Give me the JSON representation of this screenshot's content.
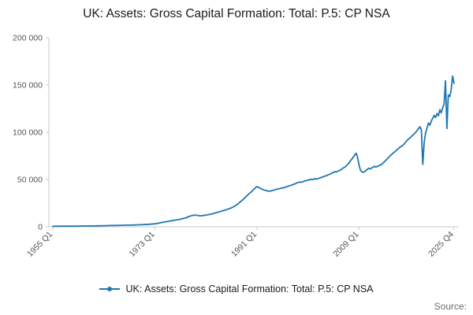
{
  "footer": {
    "source_label": "Source:"
  },
  "chart_data": {
    "type": "line",
    "title": "UK: Assets: Gross Capital Formation: Total: P.5: CP NSA",
    "xlabel": "",
    "ylabel": "",
    "xlim": [
      1954.3,
      2026.6
    ],
    "ylim": [
      0,
      200000
    ],
    "grid": false,
    "legend_position": "bottom",
    "y_ticks": [
      0,
      50000,
      100000,
      150000,
      200000
    ],
    "y_tick_labels": [
      "0",
      "50 000",
      "100 000",
      "150 000",
      "200 000"
    ],
    "x_ticks": [
      1955.0,
      1973.0,
      1991.0,
      2009.0,
      2025.75
    ],
    "x_tick_labels": [
      "1955 Q1",
      "1973 Q1",
      "1991 Q1",
      "2009 Q1",
      "2025 Q4"
    ],
    "axis_color": "#c9c9c9",
    "series": [
      {
        "name": "UK: Assets: Gross Capital Formation: Total: P.5: CP NSA",
        "color": "#1f77b4",
        "points": [
          [
            1955,
            550
          ],
          [
            1956,
            600
          ],
          [
            1957,
            640
          ],
          [
            1958,
            660
          ],
          [
            1959,
            720
          ],
          [
            1960,
            820
          ],
          [
            1961,
            900
          ],
          [
            1962,
            950
          ],
          [
            1963,
            1000
          ],
          [
            1964,
            1200
          ],
          [
            1965,
            1300
          ],
          [
            1966,
            1400
          ],
          [
            1967,
            1550
          ],
          [
            1968,
            1750
          ],
          [
            1969,
            1850
          ],
          [
            1970,
            2100
          ],
          [
            1971,
            2350
          ],
          [
            1972,
            2700
          ],
          [
            1973,
            3200
          ],
          [
            1973.5,
            3700
          ],
          [
            1974,
            4300
          ],
          [
            1974.5,
            4800
          ],
          [
            1975,
            5400
          ],
          [
            1975.5,
            5900
          ],
          [
            1976,
            6500
          ],
          [
            1976.5,
            7000
          ],
          [
            1977,
            7500
          ],
          [
            1977.5,
            8000
          ],
          [
            1978,
            8800
          ],
          [
            1978.5,
            9600
          ],
          [
            1979,
            10800
          ],
          [
            1979.5,
            11800
          ],
          [
            1980,
            12400
          ],
          [
            1980.5,
            12100
          ],
          [
            1981,
            11600
          ],
          [
            1981.5,
            11900
          ],
          [
            1982,
            12400
          ],
          [
            1982.5,
            12900
          ],
          [
            1983,
            13600
          ],
          [
            1983.5,
            14400
          ],
          [
            1984,
            15300
          ],
          [
            1984.5,
            16100
          ],
          [
            1985,
            17100
          ],
          [
            1985.5,
            17900
          ],
          [
            1986,
            18900
          ],
          [
            1986.5,
            20100
          ],
          [
            1987,
            21600
          ],
          [
            1987.5,
            23600
          ],
          [
            1988,
            26100
          ],
          [
            1988.5,
            28600
          ],
          [
            1989,
            31500
          ],
          [
            1989.5,
            34500
          ],
          [
            1990,
            37000
          ],
          [
            1990.25,
            38500
          ],
          [
            1990.5,
            40000
          ],
          [
            1990.75,
            41500
          ],
          [
            1991,
            42500
          ],
          [
            1991.25,
            41800
          ],
          [
            1991.5,
            41000
          ],
          [
            1991.75,
            40200
          ],
          [
            1992,
            39500
          ],
          [
            1992.25,
            39000
          ],
          [
            1992.5,
            38500
          ],
          [
            1992.75,
            38200
          ],
          [
            1993,
            37800
          ],
          [
            1993.25,
            37600
          ],
          [
            1993.5,
            38000
          ],
          [
            1993.75,
            38400
          ],
          [
            1994,
            38800
          ],
          [
            1994.25,
            39300
          ],
          [
            1994.5,
            39800
          ],
          [
            1994.75,
            40100
          ],
          [
            1995,
            40400
          ],
          [
            1995.25,
            40800
          ],
          [
            1995.5,
            41100
          ],
          [
            1995.75,
            41500
          ],
          [
            1996,
            41900
          ],
          [
            1996.25,
            42400
          ],
          [
            1996.5,
            42900
          ],
          [
            1996.75,
            43400
          ],
          [
            1997,
            43900
          ],
          [
            1997.25,
            44400
          ],
          [
            1997.5,
            45000
          ],
          [
            1997.75,
            45600
          ],
          [
            1998,
            46300
          ],
          [
            1998.25,
            46900
          ],
          [
            1998.5,
            47400
          ],
          [
            1998.75,
            47000
          ],
          [
            1999,
            47600
          ],
          [
            1999.25,
            48100
          ],
          [
            1999.5,
            48500
          ],
          [
            1999.75,
            49000
          ],
          [
            2000,
            49400
          ],
          [
            2000.25,
            49900
          ],
          [
            2000.5,
            50300
          ],
          [
            2000.75,
            49800
          ],
          [
            2001,
            50400
          ],
          [
            2001.25,
            50900
          ],
          [
            2001.5,
            50400
          ],
          [
            2001.75,
            51000
          ],
          [
            2002,
            51500
          ],
          [
            2002.25,
            52000
          ],
          [
            2002.5,
            52600
          ],
          [
            2002.75,
            53100
          ],
          [
            2003,
            53700
          ],
          [
            2003.25,
            54200
          ],
          [
            2003.5,
            54800
          ],
          [
            2003.75,
            55500
          ],
          [
            2004,
            56200
          ],
          [
            2004.25,
            57000
          ],
          [
            2004.5,
            57600
          ],
          [
            2004.75,
            58400
          ],
          [
            2005,
            57900
          ],
          [
            2005.25,
            58800
          ],
          [
            2005.5,
            59400
          ],
          [
            2005.75,
            60300
          ],
          [
            2006,
            61000
          ],
          [
            2006.25,
            62400
          ],
          [
            2006.5,
            63100
          ],
          [
            2006.75,
            64400
          ],
          [
            2007,
            65800
          ],
          [
            2007.25,
            67800
          ],
          [
            2007.5,
            69800
          ],
          [
            2007.75,
            71800
          ],
          [
            2008,
            73800
          ],
          [
            2008.25,
            76200
          ],
          [
            2008.5,
            77800
          ],
          [
            2008.75,
            73500
          ],
          [
            2009,
            65500
          ],
          [
            2009.25,
            60000
          ],
          [
            2009.5,
            58200
          ],
          [
            2009.75,
            57600
          ],
          [
            2010,
            58300
          ],
          [
            2010.25,
            59800
          ],
          [
            2010.5,
            61000
          ],
          [
            2010.75,
            62100
          ],
          [
            2011,
            61200
          ],
          [
            2011.25,
            62400
          ],
          [
            2011.5,
            63100
          ],
          [
            2011.75,
            64000
          ],
          [
            2012,
            63200
          ],
          [
            2012.25,
            64100
          ],
          [
            2012.5,
            64600
          ],
          [
            2012.75,
            65400
          ],
          [
            2013,
            66100
          ],
          [
            2013.25,
            67600
          ],
          [
            2013.5,
            69000
          ],
          [
            2013.75,
            70600
          ],
          [
            2014,
            72100
          ],
          [
            2014.25,
            73600
          ],
          [
            2014.5,
            75100
          ],
          [
            2014.75,
            76600
          ],
          [
            2015,
            77900
          ],
          [
            2015.25,
            79100
          ],
          [
            2015.5,
            80400
          ],
          [
            2015.75,
            81900
          ],
          [
            2016,
            83100
          ],
          [
            2016.25,
            84400
          ],
          [
            2016.5,
            85100
          ],
          [
            2016.75,
            86400
          ],
          [
            2017,
            87900
          ],
          [
            2017.25,
            89900
          ],
          [
            2017.5,
            91400
          ],
          [
            2017.75,
            92900
          ],
          [
            2018,
            94100
          ],
          [
            2018.25,
            95600
          ],
          [
            2018.5,
            97100
          ],
          [
            2018.75,
            98400
          ],
          [
            2019,
            99900
          ],
          [
            2019.25,
            101900
          ],
          [
            2019.5,
            103900
          ],
          [
            2019.75,
            105900
          ],
          [
            2020,
            102500
          ],
          [
            2020.25,
            66000
          ],
          [
            2020.5,
            89500
          ],
          [
            2020.75,
            99500
          ],
          [
            2021,
            104500
          ],
          [
            2021.25,
            109800
          ],
          [
            2021.5,
            107500
          ],
          [
            2021.75,
            111800
          ],
          [
            2022,
            114800
          ],
          [
            2022.25,
            117900
          ],
          [
            2022.5,
            115600
          ],
          [
            2022.75,
            119800
          ],
          [
            2023,
            117500
          ],
          [
            2023.25,
            123800
          ],
          [
            2023.5,
            120500
          ],
          [
            2023.75,
            125800
          ],
          [
            2024,
            129800
          ],
          [
            2024.25,
            154500
          ],
          [
            2024.5,
            104000
          ],
          [
            2024.75,
            139500
          ],
          [
            2025,
            137800
          ],
          [
            2025.25,
            144800
          ],
          [
            2025.5,
            159500
          ],
          [
            2025.75,
            151800
          ]
        ]
      }
    ]
  }
}
